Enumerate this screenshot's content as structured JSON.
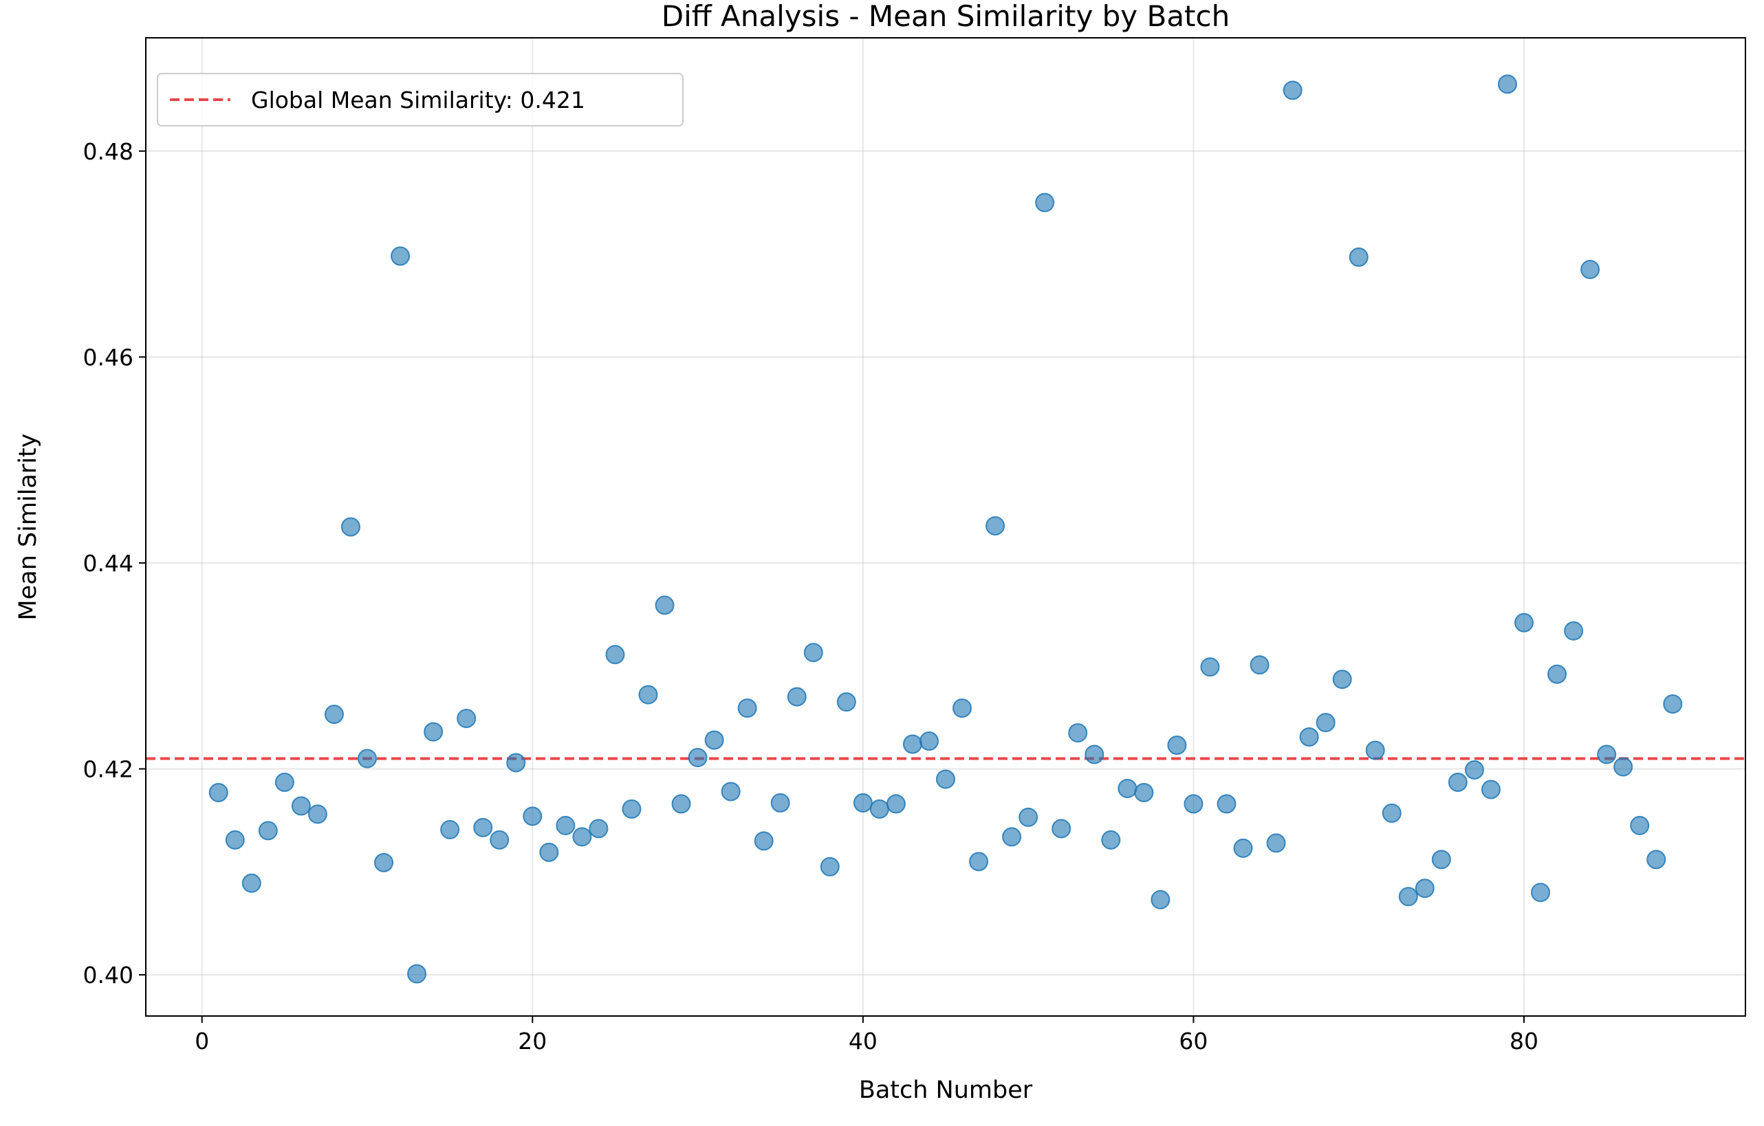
{
  "chart_data": {
    "type": "scatter",
    "title": "Diff Analysis - Mean Similarity by Batch",
    "xlabel": "Batch Number",
    "ylabel": "Mean Similarity",
    "xlim": [
      -3.4,
      93.4
    ],
    "ylim": [
      0.396,
      0.491
    ],
    "xticks": [
      0,
      20,
      40,
      60,
      80
    ],
    "yticks": [
      0.4,
      0.42,
      0.44,
      0.46,
      0.48
    ],
    "xtick_labels": [
      "0",
      "20",
      "40",
      "60",
      "80"
    ],
    "ytick_labels": [
      "0.40",
      "0.42",
      "0.44",
      "0.46",
      "0.48"
    ],
    "grid": true,
    "legend_position": "top-left",
    "series": [
      {
        "color": "#1f77b4",
        "x": [
          1,
          2,
          3,
          4,
          5,
          6,
          7,
          8,
          9,
          10,
          11,
          12,
          13,
          14,
          15,
          16,
          17,
          18,
          19,
          20,
          21,
          22,
          23,
          24,
          25,
          26,
          27,
          28,
          29,
          30,
          31,
          32,
          33,
          34,
          35,
          36,
          37,
          38,
          39,
          40,
          41,
          42,
          43,
          44,
          45,
          46,
          47,
          48,
          49,
          50,
          51,
          52,
          53,
          54,
          55,
          56,
          57,
          58,
          59,
          60,
          61,
          62,
          63,
          64,
          65,
          66,
          67,
          68,
          69,
          70,
          71,
          72,
          73,
          74,
          75,
          76,
          77,
          78,
          79,
          80,
          81,
          82,
          83,
          84,
          85,
          86,
          87,
          88,
          89
        ],
        "y": [
          0.4177,
          0.4131,
          0.4089,
          0.414,
          0.4187,
          0.4164,
          0.4156,
          0.4253,
          0.4435,
          0.421,
          0.4109,
          0.4698,
          0.4001,
          0.4236,
          0.4141,
          0.4249,
          0.4143,
          0.4131,
          0.4206,
          0.4154,
          0.4119,
          0.4145,
          0.4134,
          0.4142,
          0.4311,
          0.4161,
          0.4272,
          0.4359,
          0.4166,
          0.4211,
          0.4228,
          0.4178,
          0.4259,
          0.413,
          0.4167,
          0.427,
          0.4313,
          0.4105,
          0.4265,
          0.4167,
          0.4161,
          0.4166,
          0.4224,
          0.4227,
          0.419,
          0.4259,
          0.411,
          0.4436,
          0.4134,
          0.4153,
          0.475,
          0.4142,
          0.4235,
          0.4214,
          0.4131,
          0.4181,
          0.4177,
          0.4073,
          0.4223,
          0.4166,
          0.4299,
          0.4166,
          0.4123,
          0.4301,
          0.4128,
          0.4859,
          0.4231,
          0.4245,
          0.4287,
          0.4697,
          0.4218,
          0.4157,
          0.4076,
          0.4084,
          0.4112,
          0.4187,
          0.4199,
          0.418,
          0.4865,
          0.4342,
          0.408,
          0.4292,
          0.4334,
          0.4685,
          0.4214,
          0.4202,
          0.4145,
          0.4112,
          0.4263
        ]
      }
    ],
    "reference_lines": [
      {
        "type": "hline",
        "y": 0.421,
        "color": "#e8474a",
        "style": "dashed",
        "label": "Global Mean Similarity: 0.421"
      }
    ]
  }
}
